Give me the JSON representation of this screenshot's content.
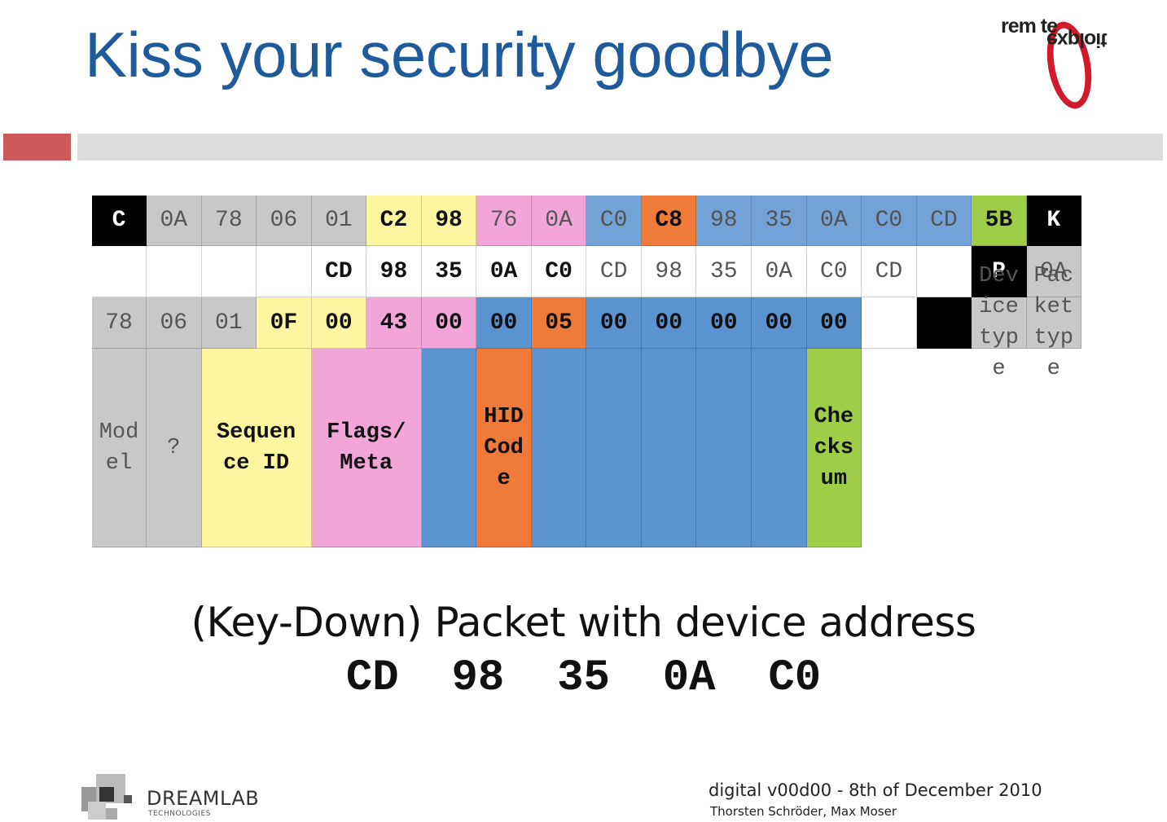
{
  "slide": {
    "title": "Kiss your security goodbye",
    "logo_top_line1": "rem te",
    "logo_top_line2": "exploit",
    "caption": "(Key-Down) Packet with device address",
    "address": "CD  98  35  0A  C0",
    "company_name": "DREAMLAB",
    "company_sub": "TECHNOLOGIES",
    "footer_event": "digital v00d00 - 8th of December 2010",
    "footer_authors": "Thorsten Schröder, Max Moser"
  },
  "table": {
    "row_labels": [
      "C",
      "K",
      "P"
    ],
    "row_c": [
      "0A",
      "78",
      "06",
      "01",
      "C2",
      "98",
      "76",
      "0A",
      "C0",
      "C8",
      "98",
      "35",
      "0A",
      "C0",
      "CD",
      "5B"
    ],
    "row_k": [
      "",
      "",
      "",
      "",
      "CD",
      "98",
      "35",
      "0A",
      "C0",
      "CD",
      "98",
      "35",
      "0A",
      "C0",
      "CD",
      ""
    ],
    "row_p": [
      "0A",
      "78",
      "06",
      "01",
      "0F",
      "00",
      "43",
      "00",
      "00",
      "05",
      "00",
      "00",
      "00",
      "00",
      "00",
      ""
    ],
    "field_labels": {
      "device_type": "Dev\nice\ntyp\ne",
      "packet_type": "Pac\nket\ntyp\ne",
      "model": "Mod\nel",
      "unknown": "?",
      "sequence_id": "Sequen\nce ID",
      "flags_meta": "Flags/\nMeta",
      "hid_code": "HID\nCod\ne",
      "checksum": "Che\ncks\num"
    }
  },
  "colors": {
    "title": "#1f5b9b",
    "grey": "#c8c8c8",
    "yellow": "#fdf6a0",
    "pink": "#f2a6d8",
    "blue": "#5b93d0",
    "orange": "#f07a3a",
    "green": "#9fcd4a",
    "accent_red": "#cc5a5a"
  }
}
